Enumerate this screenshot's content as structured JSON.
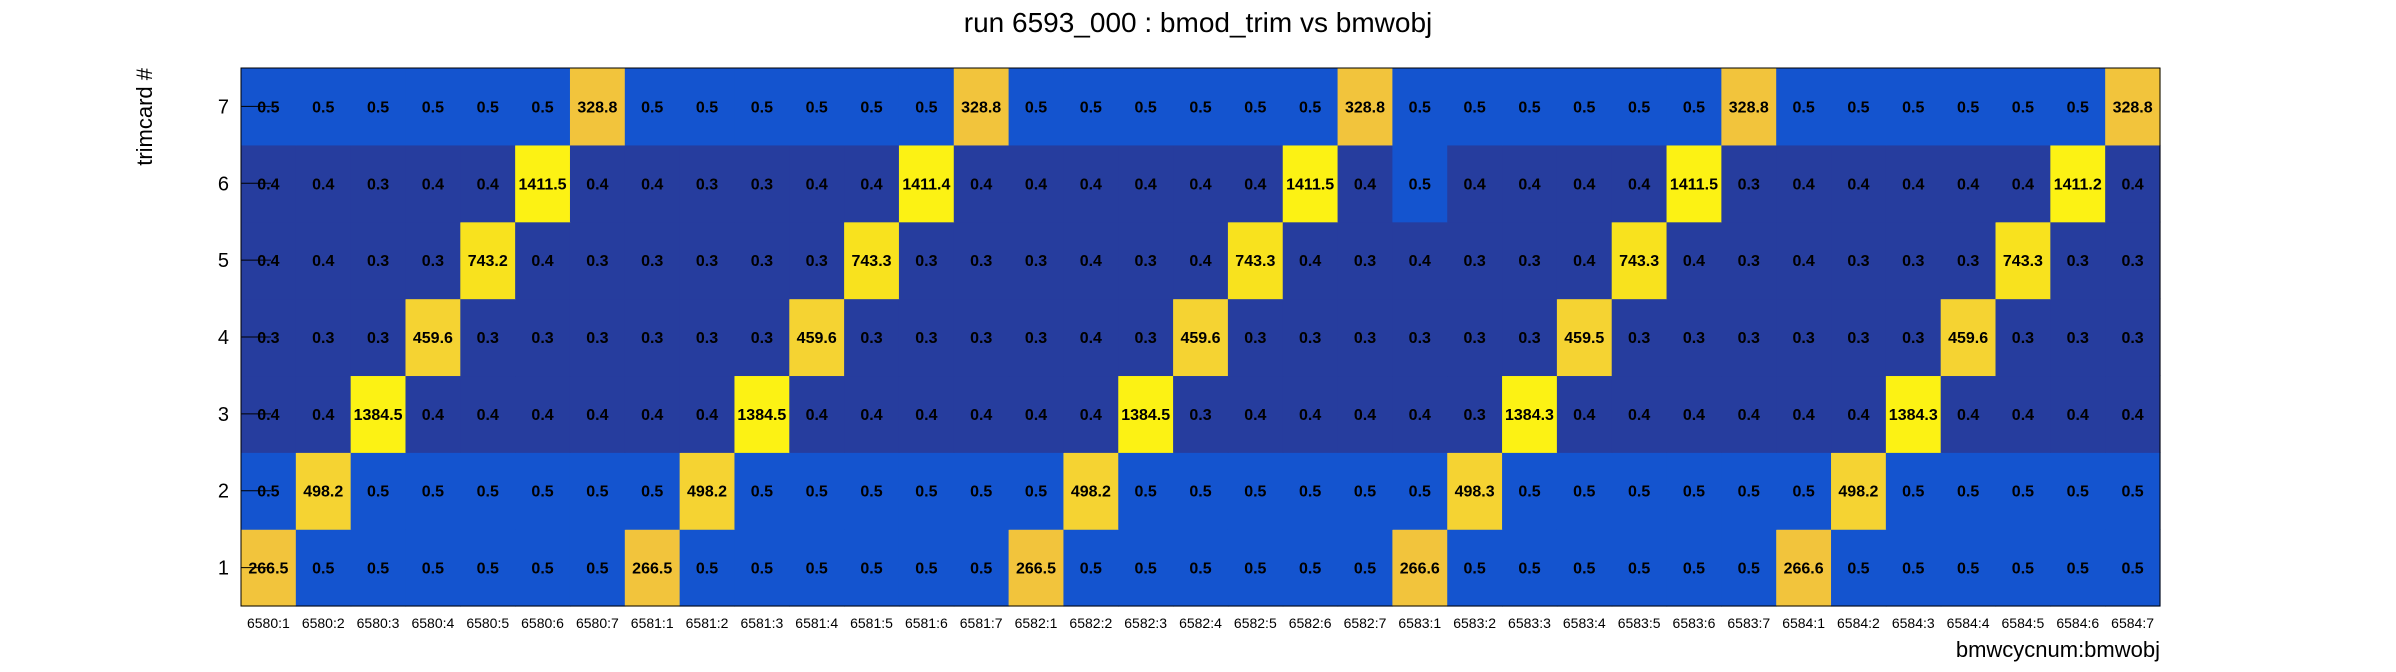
{
  "chart_data": {
    "type": "heatmap",
    "title": "run 6593_000 : bmod_trim vs bmwobj",
    "xlabel": "bmwcycnum:bmwobj",
    "ylabel": "trimcard #",
    "x_categories": [
      "6580:1",
      "6580:2",
      "6580:3",
      "6580:4",
      "6580:5",
      "6580:6",
      "6580:7",
      "6581:1",
      "6581:2",
      "6581:3",
      "6581:4",
      "6581:5",
      "6581:6",
      "6581:7",
      "6582:1",
      "6582:2",
      "6582:3",
      "6582:4",
      "6582:5",
      "6582:6",
      "6582:7",
      "6583:1",
      "6583:2",
      "6583:3",
      "6583:4",
      "6583:5",
      "6583:6",
      "6583:7",
      "6584:1",
      "6584:2",
      "6584:3",
      "6584:4",
      "6584:5",
      "6584:6",
      "6584:7"
    ],
    "y_categories": [
      "1",
      "2",
      "3",
      "4",
      "5",
      "6",
      "7"
    ],
    "values": [
      [
        "266.5",
        "0.5",
        "0.5",
        "0.5",
        "0.5",
        "0.5",
        "0.5",
        "266.5",
        "0.5",
        "0.5",
        "0.5",
        "0.5",
        "0.5",
        "0.5",
        "266.5",
        "0.5",
        "0.5",
        "0.5",
        "0.5",
        "0.5",
        "0.5",
        "266.6",
        "0.5",
        "0.5",
        "0.5",
        "0.5",
        "0.5",
        "0.5",
        "266.6",
        "0.5",
        "0.5",
        "0.5",
        "0.5",
        "0.5",
        "0.5"
      ],
      [
        "0.5",
        "498.2",
        "0.5",
        "0.5",
        "0.5",
        "0.5",
        "0.5",
        "0.5",
        "498.2",
        "0.5",
        "0.5",
        "0.5",
        "0.5",
        "0.5",
        "0.5",
        "498.2",
        "0.5",
        "0.5",
        "0.5",
        "0.5",
        "0.5",
        "0.5",
        "498.3",
        "0.5",
        "0.5",
        "0.5",
        "0.5",
        "0.5",
        "0.5",
        "498.2",
        "0.5",
        "0.5",
        "0.5",
        "0.5",
        "0.5"
      ],
      [
        "0.4",
        "0.4",
        "1384.5",
        "0.4",
        "0.4",
        "0.4",
        "0.4",
        "0.4",
        "0.4",
        "1384.5",
        "0.4",
        "0.4",
        "0.4",
        "0.4",
        "0.4",
        "0.4",
        "1384.5",
        "0.3",
        "0.4",
        "0.4",
        "0.4",
        "0.4",
        "0.3",
        "1384.3",
        "0.4",
        "0.4",
        "0.4",
        "0.4",
        "0.4",
        "0.4",
        "1384.3",
        "0.4",
        "0.4",
        "0.4",
        "0.4"
      ],
      [
        "0.3",
        "0.3",
        "0.3",
        "459.6",
        "0.3",
        "0.3",
        "0.3",
        "0.3",
        "0.3",
        "0.3",
        "459.6",
        "0.3",
        "0.3",
        "0.3",
        "0.3",
        "0.4",
        "0.3",
        "459.6",
        "0.3",
        "0.3",
        "0.3",
        "0.3",
        "0.3",
        "0.3",
        "459.5",
        "0.3",
        "0.3",
        "0.3",
        "0.3",
        "0.3",
        "0.3",
        "459.6",
        "0.3",
        "0.3",
        "0.3"
      ],
      [
        "0.4",
        "0.4",
        "0.3",
        "0.3",
        "743.2",
        "0.4",
        "0.3",
        "0.3",
        "0.3",
        "0.3",
        "0.3",
        "743.3",
        "0.3",
        "0.3",
        "0.3",
        "0.4",
        "0.3",
        "0.4",
        "743.3",
        "0.4",
        "0.3",
        "0.4",
        "0.3",
        "0.3",
        "0.4",
        "743.3",
        "0.4",
        "0.3",
        "0.4",
        "0.3",
        "0.3",
        "0.3",
        "743.3",
        "0.3",
        "0.3"
      ],
      [
        "0.4",
        "0.4",
        "0.3",
        "0.4",
        "0.4",
        "1411.5",
        "0.4",
        "0.4",
        "0.3",
        "0.3",
        "0.4",
        "0.4",
        "1411.4",
        "0.4",
        "0.4",
        "0.4",
        "0.4",
        "0.4",
        "0.4",
        "1411.5",
        "0.4",
        "0.5",
        "0.4",
        "0.4",
        "0.4",
        "0.4",
        "1411.5",
        "0.3",
        "0.4",
        "0.4",
        "0.4",
        "0.4",
        "0.4",
        "1411.2",
        "0.4"
      ],
      [
        "0.5",
        "0.5",
        "0.5",
        "0.5",
        "0.5",
        "0.5",
        "328.8",
        "0.5",
        "0.5",
        "0.5",
        "0.5",
        "0.5",
        "0.5",
        "328.8",
        "0.5",
        "0.5",
        "0.5",
        "0.5",
        "0.5",
        "0.5",
        "328.8",
        "0.5",
        "0.5",
        "0.5",
        "0.5",
        "0.5",
        "0.5",
        "328.8",
        "0.5",
        "0.5",
        "0.5",
        "0.5",
        "0.5",
        "0.5",
        "328.8"
      ]
    ],
    "colors": {
      "v0_3": "#263d9e",
      "v0_4": "#263d9e",
      "v0_5": "#1454cf",
      "v266": "#f2c43c",
      "v328": "#f2c43c",
      "v459": "#f5d332",
      "v498": "#f5d332",
      "v743": "#f8e21e",
      "v1384": "#fcf214",
      "v1411": "#fcf214",
      "frame": "#000000"
    }
  }
}
